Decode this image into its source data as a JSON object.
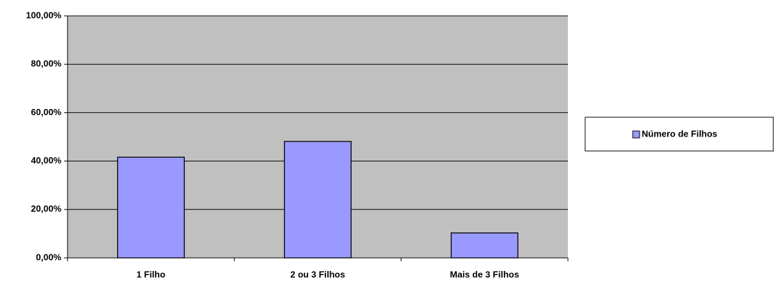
{
  "chart_data": {
    "type": "bar",
    "categories": [
      "1 Filho",
      "2 ou 3 Filhos",
      "Mais de 3 Filhos"
    ],
    "series": [
      {
        "name": "Número de Filhos",
        "color": "#9999ff",
        "values": [
          41.6,
          48.1,
          10.3
        ]
      }
    ],
    "ylim": [
      0,
      100
    ],
    "yticks": [
      {
        "value": 0,
        "label": "0,00%"
      },
      {
        "value": 20,
        "label": "20,00%"
      },
      {
        "value": 40,
        "label": "40,00%"
      },
      {
        "value": 60,
        "label": "60,00%"
      },
      {
        "value": 80,
        "label": "80,00%"
      },
      {
        "value": 100,
        "label": "100,00%"
      }
    ],
    "grid": true,
    "legend": "right",
    "plot_background": "#c0c0c0"
  }
}
